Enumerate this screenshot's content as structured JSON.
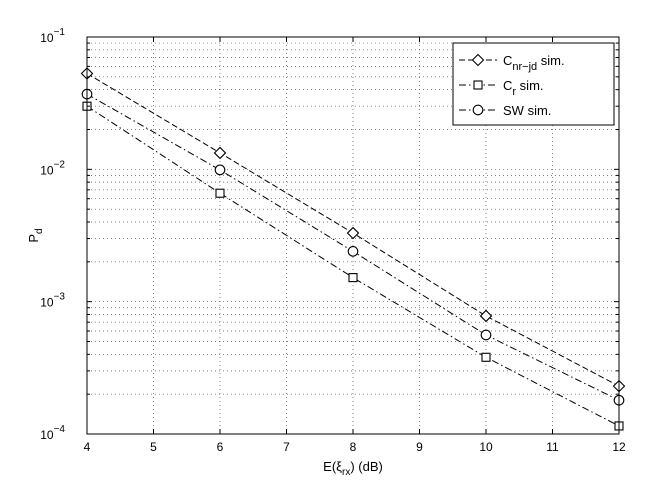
{
  "chart_data": {
    "type": "line",
    "x": [
      4,
      6,
      8,
      10,
      12
    ],
    "xlim": [
      4,
      12
    ],
    "ylim": [
      0.0001,
      0.1
    ],
    "yscale": "log",
    "grid": true,
    "legend_position": "top-right",
    "xlabel": {
      "main": "E(ξ",
      "sub": "rx",
      "tail": ") (dB)"
    },
    "ylabel": {
      "main": "P",
      "sub": "d"
    },
    "xticks": [
      4,
      5,
      6,
      7,
      8,
      9,
      10,
      11,
      12
    ],
    "yticks": [
      {
        "value": 0.1,
        "base": "10",
        "exp": "−1"
      },
      {
        "value": 0.01,
        "base": "10",
        "exp": "−2"
      },
      {
        "value": 0.001,
        "base": "10",
        "exp": "−3"
      },
      {
        "value": 0.0001,
        "base": "10",
        "exp": "−4"
      }
    ],
    "series": [
      {
        "name": "C",
        "name_sub": "nr−jd",
        "name_tail": " sim.",
        "marker": "diamond",
        "dash": "dashed",
        "values": [
          0.053,
          0.0133,
          0.0033,
          0.00078,
          0.00023
        ]
      },
      {
        "name": "C",
        "name_sub": "r",
        "name_tail": " sim.",
        "marker": "square",
        "dash": "dashdot",
        "values": [
          0.03,
          0.0066,
          0.00152,
          0.00038,
          0.000115
        ]
      },
      {
        "name": "SW",
        "name_sub": "",
        "name_tail": " sim.",
        "marker": "circle",
        "dash": "dashdot",
        "values": [
          0.037,
          0.0099,
          0.0024,
          0.00056,
          0.00018
        ]
      }
    ]
  }
}
